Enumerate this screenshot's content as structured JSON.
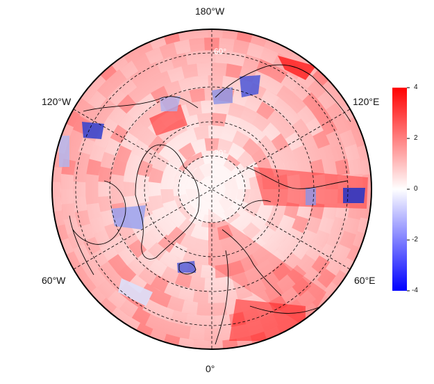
{
  "map": {
    "projection": "north-polar-stereographic",
    "center_latitude": 90,
    "bottom_longitude": "0°",
    "longitude_labels": [
      "180°W",
      "120°E",
      "60°E",
      "0°",
      "60°W",
      "120°W"
    ],
    "latitude_labels": [
      "60°",
      "30°"
    ],
    "graticule_style": "dashed",
    "coastlines": "black",
    "field_description": "gridded anomaly field, mostly positive (red), with scattered negative (blue) cells"
  },
  "colorbar": {
    "min": -4,
    "max": 4,
    "ticks": [
      "4",
      "2",
      "0",
      "-2",
      "-4"
    ],
    "colors": {
      "low": "#0000ff",
      "mid": "#ffffff",
      "high": "#ff0000"
    }
  }
}
